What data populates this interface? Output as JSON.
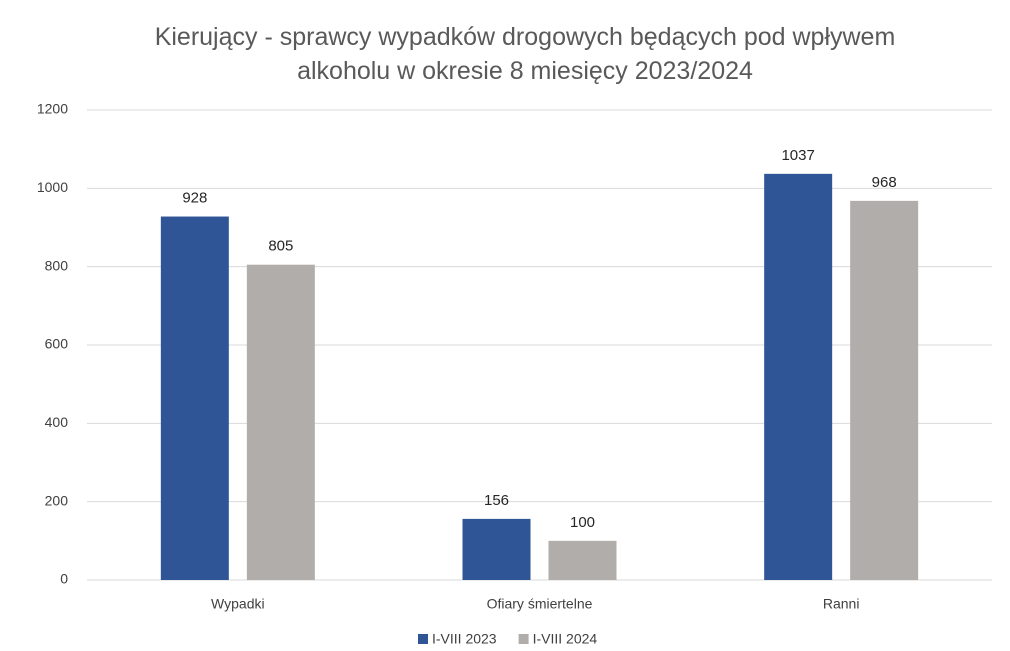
{
  "chart_data": {
    "type": "bar",
    "title": "Kierujący - sprawcy wypadków drogowych będących pod wpływem alkoholu w okresie 8 miesięcy 2023/2024",
    "categories": [
      "Wypadki",
      "Ofiary śmiertelne",
      "Ranni"
    ],
    "series": [
      {
        "name": "I-VIII 2023",
        "color": "#2f5597",
        "values": [
          928,
          156,
          1037
        ]
      },
      {
        "name": "I-VIII 2024",
        "color": "#b0adab",
        "values": [
          805,
          100,
          968
        ]
      }
    ],
    "ylim": [
      0,
      1200
    ],
    "yticks": [
      0,
      200,
      400,
      600,
      800,
      1000,
      1200
    ],
    "grid": true,
    "legend": "bottom"
  }
}
